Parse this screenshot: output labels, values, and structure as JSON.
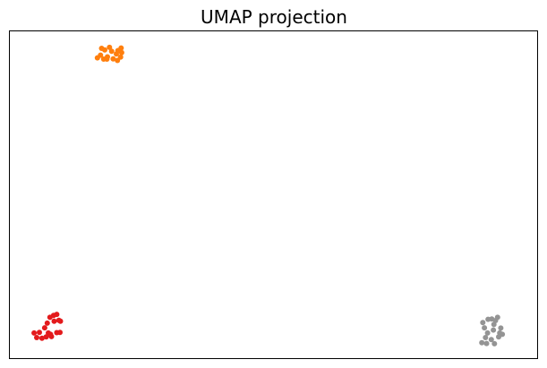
{
  "chart_data": {
    "type": "scatter",
    "title": "UMAP projection",
    "xlabel": "",
    "ylabel": "",
    "xlim": [
      0,
      100
    ],
    "ylim": [
      0,
      100
    ],
    "grid": false,
    "legend": "none",
    "axis_ticks": false,
    "series": [
      {
        "color": "#ff7f0e",
        "points": [
          [
            18.0,
            94.3
          ],
          [
            18.9,
            95.1
          ],
          [
            17.4,
            94.8
          ],
          [
            17.2,
            92.7
          ],
          [
            18.5,
            92.2
          ],
          [
            19.3,
            93.9
          ],
          [
            20.2,
            93.1
          ],
          [
            21.2,
            93.5
          ],
          [
            21.0,
            92.1
          ],
          [
            20.4,
            91.1
          ],
          [
            19.6,
            91.6
          ],
          [
            18.4,
            91.5
          ],
          [
            20.5,
            94.1
          ],
          [
            21.1,
            94.9
          ],
          [
            16.6,
            91.9
          ],
          [
            17.8,
            91.5
          ]
        ]
      },
      {
        "color": "#e31a1c",
        "points": [
          [
            8.3,
            13.1
          ],
          [
            7.6,
            12.5
          ],
          [
            8.9,
            13.4
          ],
          [
            9.6,
            11.3
          ],
          [
            8.4,
            11.3
          ],
          [
            7.1,
            10.7
          ],
          [
            6.6,
            9.3
          ],
          [
            5.6,
            7.9
          ],
          [
            6.1,
            6.1
          ],
          [
            5.1,
            6.3
          ],
          [
            6.9,
            6.5
          ],
          [
            7.3,
            7.7
          ],
          [
            7.9,
            6.6
          ],
          [
            8.9,
            7.8
          ],
          [
            9.3,
            11.6
          ],
          [
            9.5,
            7.9
          ],
          [
            7.7,
            7.3
          ],
          [
            4.6,
            7.7
          ]
        ]
      },
      {
        "color": "#949494",
        "points": [
          [
            92.5,
            12.5
          ],
          [
            92.1,
            11.5
          ],
          [
            91.4,
            12.0
          ],
          [
            91.8,
            10.3
          ],
          [
            90.7,
            11.9
          ],
          [
            89.7,
            10.9
          ],
          [
            90.0,
            9.3
          ],
          [
            91.7,
            8.6
          ],
          [
            90.6,
            7.7
          ],
          [
            92.9,
            7.7
          ],
          [
            93.1,
            9.2
          ],
          [
            93.4,
            7.3
          ],
          [
            92.7,
            6.5
          ],
          [
            91.3,
            5.7
          ],
          [
            90.2,
            6.3
          ],
          [
            89.5,
            4.7
          ],
          [
            90.4,
            4.5
          ],
          [
            91.9,
            4.4
          ]
        ]
      }
    ]
  }
}
